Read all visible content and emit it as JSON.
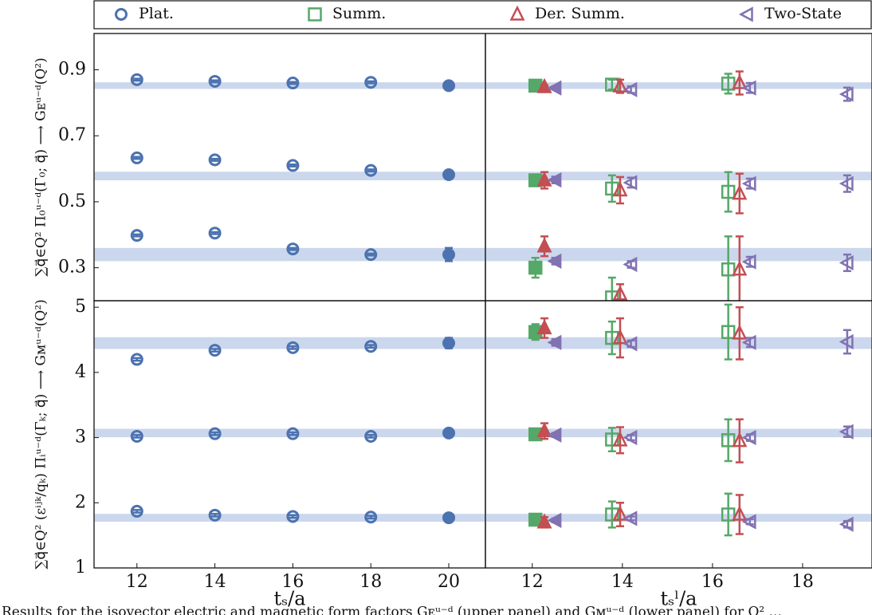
{
  "chart_data": [
    {
      "type": "scatter",
      "ylabel": "∑q⃗∈Q² Π₀ᵘ⁻ᵈ(Γ₀; q⃗) ⟶ Gᴇᵘ⁻ᵈ(Q²)",
      "xlim": [
        10.9,
        20.94
      ],
      "ylim": [
        0.2,
        1.01
      ],
      "yticks": [
        0.3,
        0.5,
        0.7,
        0.9
      ],
      "bands": [
        {
          "value": 0.852,
          "error": 0.01
        },
        {
          "value": 0.578,
          "error": 0.013
        },
        {
          "value": 0.34,
          "error": 0.02
        }
      ],
      "band_color": "#cbd7ec",
      "series": [
        {
          "name": "Plat.",
          "color": "#4c72b0",
          "marker": "circle",
          "x": [
            12,
            14,
            16,
            18,
            20,
            12,
            14,
            16,
            18,
            20,
            12,
            14,
            16,
            18,
            20
          ],
          "values": [
            0.87,
            0.865,
            0.86,
            0.862,
            0.852,
            0.633,
            0.627,
            0.61,
            0.595,
            0.582,
            0.398,
            0.405,
            0.357,
            0.34,
            0.34
          ],
          "errors": [
            0.003,
            0.003,
            0.003,
            0.003,
            0.005,
            0.003,
            0.003,
            0.003,
            0.003,
            0.006,
            0.003,
            0.003,
            0.003,
            0.003,
            0.02
          ],
          "filled": [
            false,
            false,
            false,
            false,
            true,
            false,
            false,
            false,
            false,
            true,
            false,
            false,
            false,
            false,
            true
          ]
        }
      ]
    },
    {
      "type": "scatter",
      "xlim": [
        10.96,
        19.54
      ],
      "ylim": [
        0.2,
        1.01
      ],
      "bands": [
        {
          "value": 0.852,
          "error": 0.01
        },
        {
          "value": 0.578,
          "error": 0.013
        },
        {
          "value": 0.34,
          "error": 0.02
        }
      ],
      "band_color": "#cbd7ec",
      "series": [
        {
          "name": "Summ.",
          "color": "#55a868",
          "marker": "square",
          "x": [
            12.07,
            13.77,
            16.35,
            12.07,
            13.77,
            16.35,
            12.07,
            13.77,
            16.35
          ],
          "values": [
            0.852,
            0.855,
            0.858,
            0.565,
            0.54,
            0.53,
            0.3,
            0.21,
            0.295
          ],
          "errors": [
            0.005,
            0.015,
            0.03,
            0.015,
            0.04,
            0.06,
            0.03,
            0.06,
            0.1
          ],
          "filled": [
            true,
            false,
            false,
            true,
            false,
            false,
            true,
            false,
            false
          ]
        },
        {
          "name": "Der. Summ.",
          "color": "#c44e52",
          "marker": "triangle-up",
          "x": [
            12.27,
            13.95,
            16.6,
            12.27,
            13.95,
            16.6,
            12.27,
            13.95,
            16.6
          ],
          "values": [
            0.848,
            0.85,
            0.86,
            0.565,
            0.535,
            0.525,
            0.365,
            0.22,
            0.295
          ],
          "errors": [
            0.005,
            0.02,
            0.035,
            0.025,
            0.04,
            0.06,
            0.03,
            0.03,
            0.1
          ],
          "filled": [
            true,
            false,
            false,
            true,
            false,
            false,
            true,
            false,
            false
          ]
        },
        {
          "name": "Two-State",
          "color": "#8172b2",
          "marker": "triangle-left",
          "x": [
            12.51,
            14.19,
            16.83,
            18.99,
            12.51,
            14.19,
            16.83,
            18.99,
            12.51,
            14.19,
            16.83,
            18.99
          ],
          "values": [
            0.845,
            0.84,
            0.845,
            0.826,
            0.566,
            0.558,
            0.555,
            0.555,
            0.32,
            0.31,
            0.318,
            0.315
          ],
          "errors": [
            0.005,
            0.01,
            0.015,
            0.02,
            0.01,
            0.015,
            0.015,
            0.025,
            0.01,
            0.01,
            0.015,
            0.025
          ],
          "filled": [
            true,
            false,
            false,
            false,
            true,
            false,
            false,
            false,
            true,
            false,
            false,
            false
          ]
        }
      ]
    },
    {
      "type": "scatter",
      "ylabel": "∑q⃗∈Q² (εⁱʲᵏ/qₖ) Πᵢᵘ⁻ᵈ(Γₖ; q⃗) ⟶ Gᴍᵘ⁻ᵈ(Q²)",
      "xlabel": "tₛ/a",
      "xlim": [
        10.9,
        20.94
      ],
      "ylim": [
        1,
        5.1
      ],
      "xticks": [
        12,
        14,
        16,
        18,
        20
      ],
      "yticks": [
        1,
        2,
        3,
        4,
        5
      ],
      "bands": [
        {
          "value": 4.45,
          "error": 0.09
        },
        {
          "value": 3.07,
          "error": 0.065
        },
        {
          "value": 1.77,
          "error": 0.06
        }
      ],
      "band_color": "#cbd7ec",
      "series": [
        {
          "color": "#4c72b0",
          "marker": "circle",
          "x": [
            12,
            14,
            16,
            18,
            20,
            12,
            14,
            16,
            18,
            20,
            12,
            14,
            16,
            18,
            20
          ],
          "values": [
            4.2,
            4.34,
            4.38,
            4.4,
            4.45,
            3.02,
            3.06,
            3.06,
            3.02,
            3.07,
            1.87,
            1.81,
            1.79,
            1.78,
            1.77
          ],
          "errors": [
            0.02,
            0.02,
            0.02,
            0.02,
            0.08,
            0.02,
            0.02,
            0.02,
            0.02,
            0.04,
            0.02,
            0.02,
            0.02,
            0.02,
            0.03
          ],
          "filled": [
            false,
            false,
            false,
            false,
            true,
            false,
            false,
            false,
            false,
            true,
            false,
            false,
            false,
            false,
            true
          ]
        }
      ]
    },
    {
      "type": "scatter",
      "xlabel": "tₛˡ/a",
      "xlim": [
        10.96,
        19.54
      ],
      "ylim": [
        1,
        5.1
      ],
      "xticks": [
        12,
        14,
        16,
        18
      ],
      "bands": [
        {
          "value": 4.45,
          "error": 0.09
        },
        {
          "value": 3.07,
          "error": 0.065
        },
        {
          "value": 1.77,
          "error": 0.06
        }
      ],
      "band_color": "#cbd7ec",
      "series": [
        {
          "color": "#55a868",
          "marker": "square",
          "x": [
            12.07,
            13.77,
            16.35,
            12.07,
            13.77,
            16.35,
            12.07,
            13.77,
            16.35
          ],
          "values": [
            4.62,
            4.53,
            4.62,
            3.05,
            2.97,
            2.96,
            1.74,
            1.82,
            1.82
          ],
          "errors": [
            0.12,
            0.25,
            0.42,
            0.06,
            0.18,
            0.32,
            0.05,
            0.2,
            0.32
          ],
          "filled": [
            true,
            false,
            false,
            true,
            false,
            false,
            true,
            false,
            false
          ]
        },
        {
          "color": "#c44e52",
          "marker": "triangle-up",
          "x": [
            12.27,
            13.95,
            16.6,
            12.27,
            13.95,
            16.6,
            12.27,
            13.95,
            16.6
          ],
          "values": [
            4.68,
            4.53,
            4.6,
            3.1,
            2.96,
            2.95,
            1.7,
            1.82,
            1.82
          ],
          "errors": [
            0.15,
            0.3,
            0.4,
            0.12,
            0.2,
            0.33,
            0.08,
            0.18,
            0.3
          ],
          "filled": [
            true,
            false,
            false,
            true,
            false,
            false,
            true,
            false,
            false
          ]
        },
        {
          "color": "#8172b2",
          "marker": "triangle-left",
          "x": [
            12.51,
            14.19,
            16.83,
            18.99,
            12.51,
            14.19,
            16.83,
            18.99,
            12.51,
            14.19,
            16.83,
            18.99
          ],
          "values": [
            4.46,
            4.44,
            4.46,
            4.47,
            3.04,
            3.0,
            3.0,
            3.09,
            1.73,
            1.76,
            1.71,
            1.67
          ],
          "errors": [
            0.05,
            0.05,
            0.07,
            0.18,
            0.03,
            0.04,
            0.05,
            0.08,
            0.03,
            0.03,
            0.04,
            0.05
          ],
          "filled": [
            true,
            false,
            false,
            false,
            true,
            false,
            false,
            false,
            true,
            false,
            false,
            false
          ]
        }
      ]
    }
  ],
  "caption": "Results for the isovector electric and magnetic form factors Gᴇᵘ⁻ᵈ (upper panel) and Gᴍᵘ⁻ᵈ (lower panel) for Q² ..."
}
